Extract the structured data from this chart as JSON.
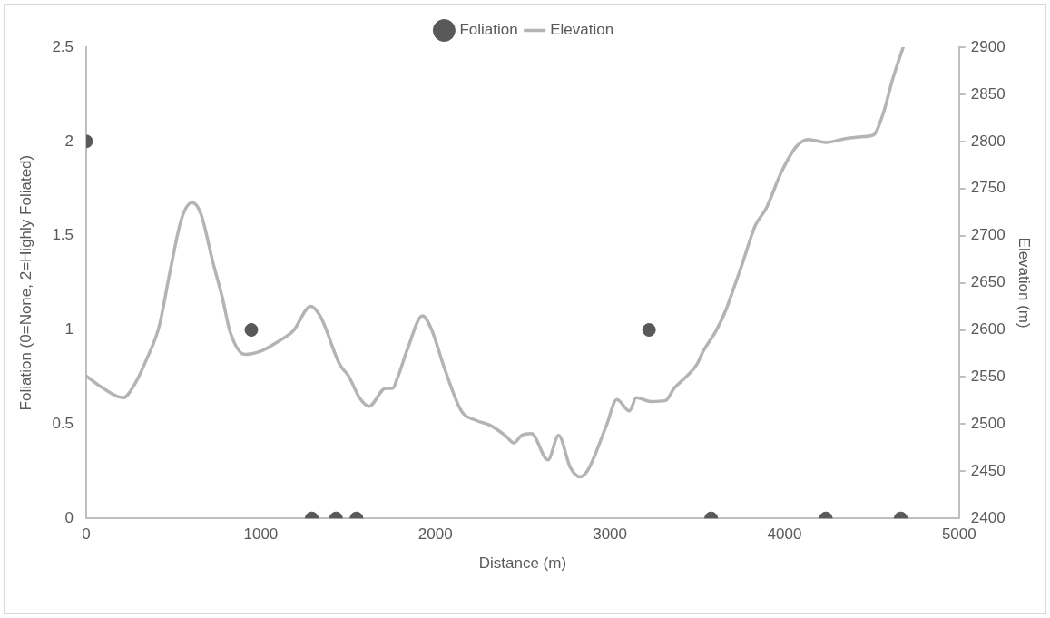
{
  "chart_data": {
    "type": "scatter",
    "xlabel": "Distance (m)",
    "ylabel": "Foliation (0=None, 2=Highly Foliated)",
    "y2label": "Elevation (m)",
    "xlim": [
      0,
      5000
    ],
    "xticks": [
      0,
      1000,
      2000,
      3000,
      4000,
      5000
    ],
    "ylim": [
      0,
      2.5
    ],
    "yticks": [
      0,
      0.5,
      1,
      1.5,
      2,
      2.5
    ],
    "y2lim": [
      2400,
      2900
    ],
    "y2ticks": [
      2400,
      2450,
      2500,
      2550,
      2600,
      2650,
      2700,
      2750,
      2800,
      2850,
      2900
    ],
    "legend": "top",
    "series": [
      {
        "name": "Foliation",
        "type": "scatter",
        "marker": "circle",
        "color": "#595959",
        "x": [
          0,
          946,
          1292,
          1431,
          1548,
          3224,
          3580,
          4237,
          4666
        ],
        "values": [
          2,
          1,
          0,
          0,
          0,
          1,
          0,
          0,
          0
        ]
      },
      {
        "name": "Elevation",
        "type": "line",
        "marker": "none",
        "axis": "y2",
        "color": "#b4b4b4",
        "x": [
          0,
          89,
          212,
          267,
          351,
          418,
          479,
          546,
          607,
          657,
          724,
          780,
          824,
          908,
          1008,
          1102,
          1186,
          1286,
          1342,
          1453,
          1503,
          1565,
          1620,
          1715,
          1754,
          1787,
          1843,
          1926,
          1977,
          2049,
          2149,
          2233,
          2311,
          2400,
          2450,
          2494,
          2550,
          2645,
          2706,
          2773,
          2829,
          2873,
          2979,
          3040,
          3112,
          3151,
          3235,
          3318,
          3368,
          3441,
          3497,
          3536,
          3608,
          3664,
          3703,
          3758,
          3831,
          3898,
          3981,
          4070,
          4137,
          4237,
          4349,
          4443,
          4510,
          4566,
          4621,
          4680
        ],
        "values": [
          2551,
          2539,
          2528,
          2539,
          2571,
          2604,
          2661,
          2718,
          2735,
          2723,
          2673,
          2634,
          2598,
          2574,
          2578,
          2588,
          2599,
          2625,
          2614,
          2563,
          2551,
          2528,
          2519,
          2538,
          2538,
          2551,
          2581,
          2615,
          2601,
          2561,
          2514,
          2504,
          2499,
          2488,
          2480,
          2488,
          2490,
          2462,
          2488,
          2454,
          2444,
          2451,
          2498,
          2526,
          2514,
          2528,
          2524,
          2525,
          2538,
          2551,
          2563,
          2578,
          2599,
          2621,
          2641,
          2670,
          2710,
          2730,
          2767,
          2795,
          2802,
          2799,
          2803,
          2805,
          2807,
          2830,
          2867,
          2900
        ]
      }
    ]
  }
}
